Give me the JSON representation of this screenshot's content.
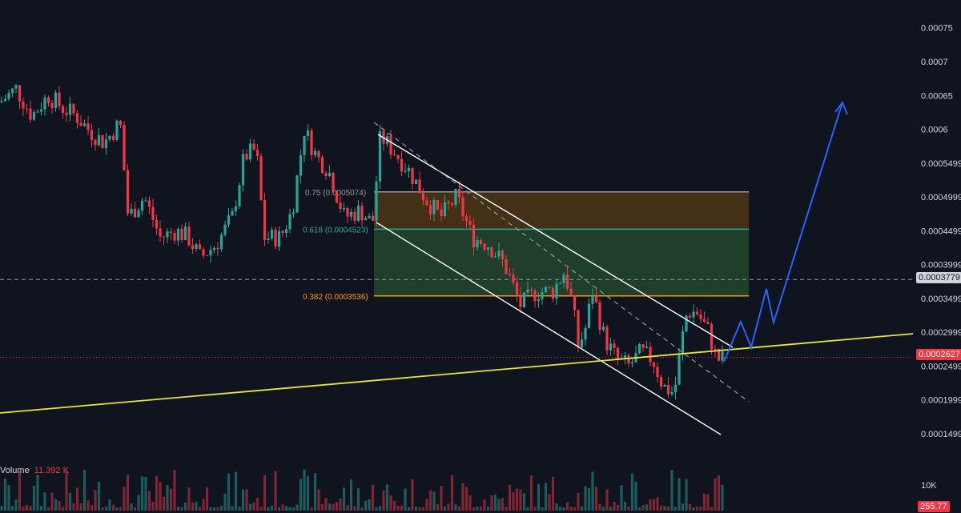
{
  "chart_data": {
    "type": "candlestick",
    "y_axis": {
      "ticks": [
        "0.00075",
        "0.0007",
        "0.00065",
        "0.0006",
        "0.0005499",
        "0.0004999",
        "0.0004499",
        "0.0003999",
        "0.0003499",
        "0.0002999",
        "0.0002499",
        "0.0001999",
        "0.0001499"
      ],
      "range": [
        0.00013,
        0.00078
      ]
    },
    "current_price": "0.0002627",
    "marker_price": "0.0003779",
    "fib_levels": [
      {
        "label": "0.75 (0.0005074)",
        "value": 0.0005074,
        "color": "#9598a1"
      },
      {
        "label": "0.618 (0.0004523)",
        "value": 0.0004523,
        "color": "#26a69a"
      },
      {
        "label": "0.382 (0.0003536)",
        "value": 0.0003536,
        "color": "#ff9800"
      }
    ],
    "volume": {
      "label": "Volume",
      "value": "11.392 K",
      "axis_tick": "10K",
      "badge": "255.77"
    },
    "colors": {
      "up": "#26a69a",
      "down": "#f23645",
      "background": "#0f141e",
      "trendline": "#e8e43c",
      "projection": "#2962ff",
      "channel": "#ffffff"
    }
  }
}
